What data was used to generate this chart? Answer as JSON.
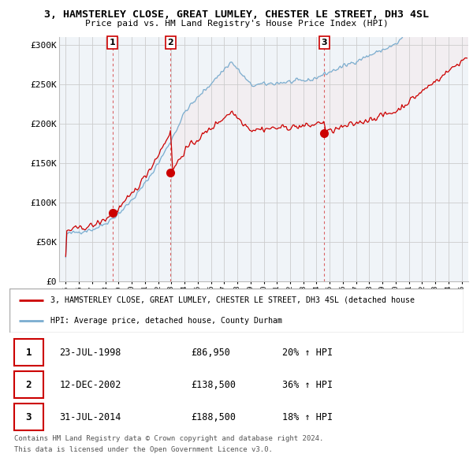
{
  "title": "3, HAMSTERLEY CLOSE, GREAT LUMLEY, CHESTER LE STREET, DH3 4SL",
  "subtitle": "Price paid vs. HM Land Registry's House Price Index (HPI)",
  "background_color": "#ffffff",
  "plot_bg_color": "#ffffff",
  "grid_color": "#cccccc",
  "red_color": "#cc0000",
  "blue_color": "#7aadcf",
  "fill_color": "#ddeeff",
  "transactions": [
    {
      "num": 1,
      "date_x": 1998.55,
      "price": 86950
    },
    {
      "num": 2,
      "date_x": 2002.94,
      "price": 138500
    },
    {
      "num": 3,
      "date_x": 2014.58,
      "price": 188500
    }
  ],
  "legend_entry1": "3, HAMSTERLEY CLOSE, GREAT LUMLEY, CHESTER LE STREET, DH3 4SL (detached house",
  "legend_entry2": "HPI: Average price, detached house, County Durham",
  "footer1": "Contains HM Land Registry data © Crown copyright and database right 2024.",
  "footer2": "This data is licensed under the Open Government Licence v3.0.",
  "ylim": [
    0,
    310000
  ],
  "xlim": [
    1994.5,
    2025.5
  ],
  "yticks": [
    0,
    50000,
    100000,
    150000,
    200000,
    250000,
    300000
  ],
  "ytick_labels": [
    "£0",
    "£50K",
    "£100K",
    "£150K",
    "£200K",
    "£250K",
    "£300K"
  ],
  "xticks": [
    1995,
    1996,
    1997,
    1998,
    1999,
    2000,
    2001,
    2002,
    2003,
    2004,
    2005,
    2006,
    2007,
    2008,
    2009,
    2010,
    2011,
    2012,
    2013,
    2014,
    2015,
    2016,
    2017,
    2018,
    2019,
    2020,
    2021,
    2022,
    2023,
    2024,
    2025
  ],
  "tx_info": [
    {
      "num": 1,
      "date_label": "23-JUL-1998",
      "price_label": "£86,950",
      "pct_label": "20% ↑ HPI"
    },
    {
      "num": 2,
      "date_label": "12-DEC-2002",
      "price_label": "£138,500",
      "pct_label": "36% ↑ HPI"
    },
    {
      "num": 3,
      "date_label": "31-JUL-2014",
      "price_label": "£188,500",
      "pct_label": "18% ↑ HPI"
    }
  ]
}
